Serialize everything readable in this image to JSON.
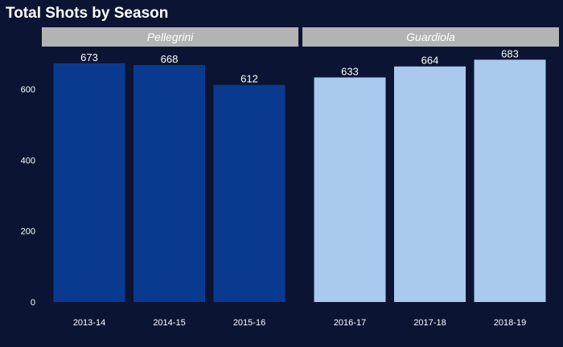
{
  "chart_data": {
    "type": "bar",
    "title": "Total Shots by Season",
    "xlabel": "",
    "ylabel": "",
    "ylim": [
      0,
      700
    ],
    "yticks": [
      0,
      200,
      400,
      600
    ],
    "grid": false,
    "legend": "none",
    "panels": [
      {
        "name": "Pellegrini",
        "color": "#093a8f",
        "categories": [
          "2013-14",
          "2014-15",
          "2015-16"
        ],
        "values": [
          673,
          668,
          612
        ]
      },
      {
        "name": "Guardiola",
        "color": "#a9caee",
        "categories": [
          "2016-17",
          "2017-18",
          "2018-19"
        ],
        "values": [
          633,
          664,
          683
        ]
      }
    ]
  },
  "colors": {
    "background": "#0b1533",
    "strip": "#b3b3b3",
    "text": "#ffffff"
  }
}
